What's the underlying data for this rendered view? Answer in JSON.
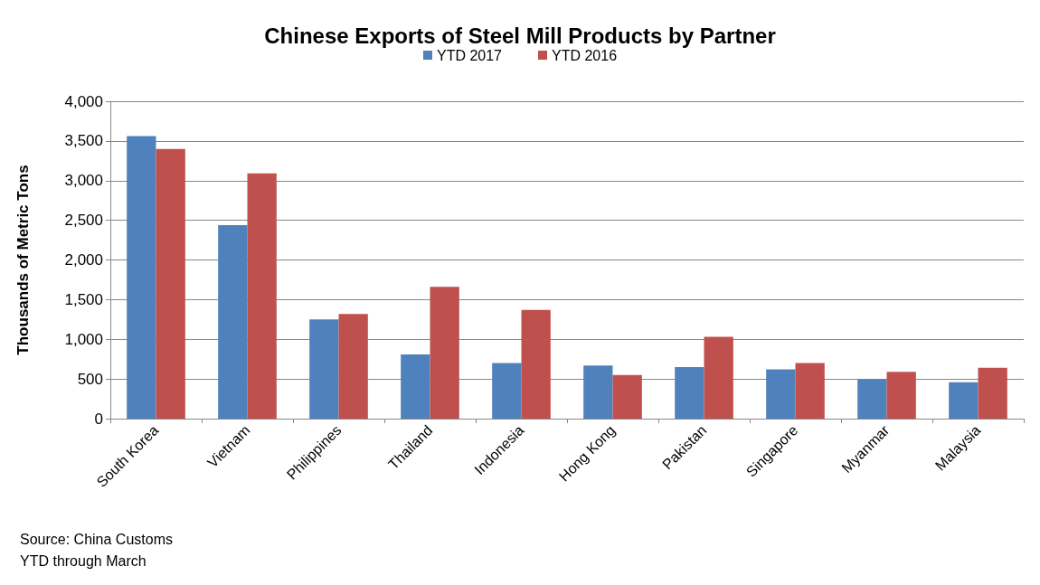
{
  "chart_data": {
    "type": "bar",
    "title": "Chinese Exports of Steel Mill Products by Partner",
    "ylabel": "Thousands of Metric Tons",
    "categories": [
      "South Korea",
      "Vietnam",
      "Philippines",
      "Thailand",
      "Indonesia",
      "Hong Kong",
      "Pakistan",
      "Singapore",
      "Myanmar",
      "Malaysia"
    ],
    "series": [
      {
        "name": "YTD 2017",
        "color": "#4f81bd",
        "values": [
          3560,
          2440,
          1250,
          810,
          700,
          670,
          650,
          620,
          500,
          460
        ]
      },
      {
        "name": "YTD 2016",
        "color": "#c0504d",
        "values": [
          3400,
          3090,
          1320,
          1660,
          1370,
          550,
          1030,
          700,
          590,
          640
        ]
      }
    ],
    "ylim": [
      0,
      4000
    ],
    "yticks": [
      {
        "value": 0,
        "label": "0"
      },
      {
        "value": 500,
        "label": "500"
      },
      {
        "value": 1000,
        "label": "1,000"
      },
      {
        "value": 1500,
        "label": "1,500"
      },
      {
        "value": 2000,
        "label": "2,000"
      },
      {
        "value": 2500,
        "label": "2,500"
      },
      {
        "value": 3000,
        "label": "3,000"
      },
      {
        "value": 3500,
        "label": "3,500"
      },
      {
        "value": 4000,
        "label": "4,000"
      }
    ],
    "grid": "y",
    "legend": "top",
    "annotations": [
      "Source: China Customs",
      "YTD through March"
    ]
  }
}
